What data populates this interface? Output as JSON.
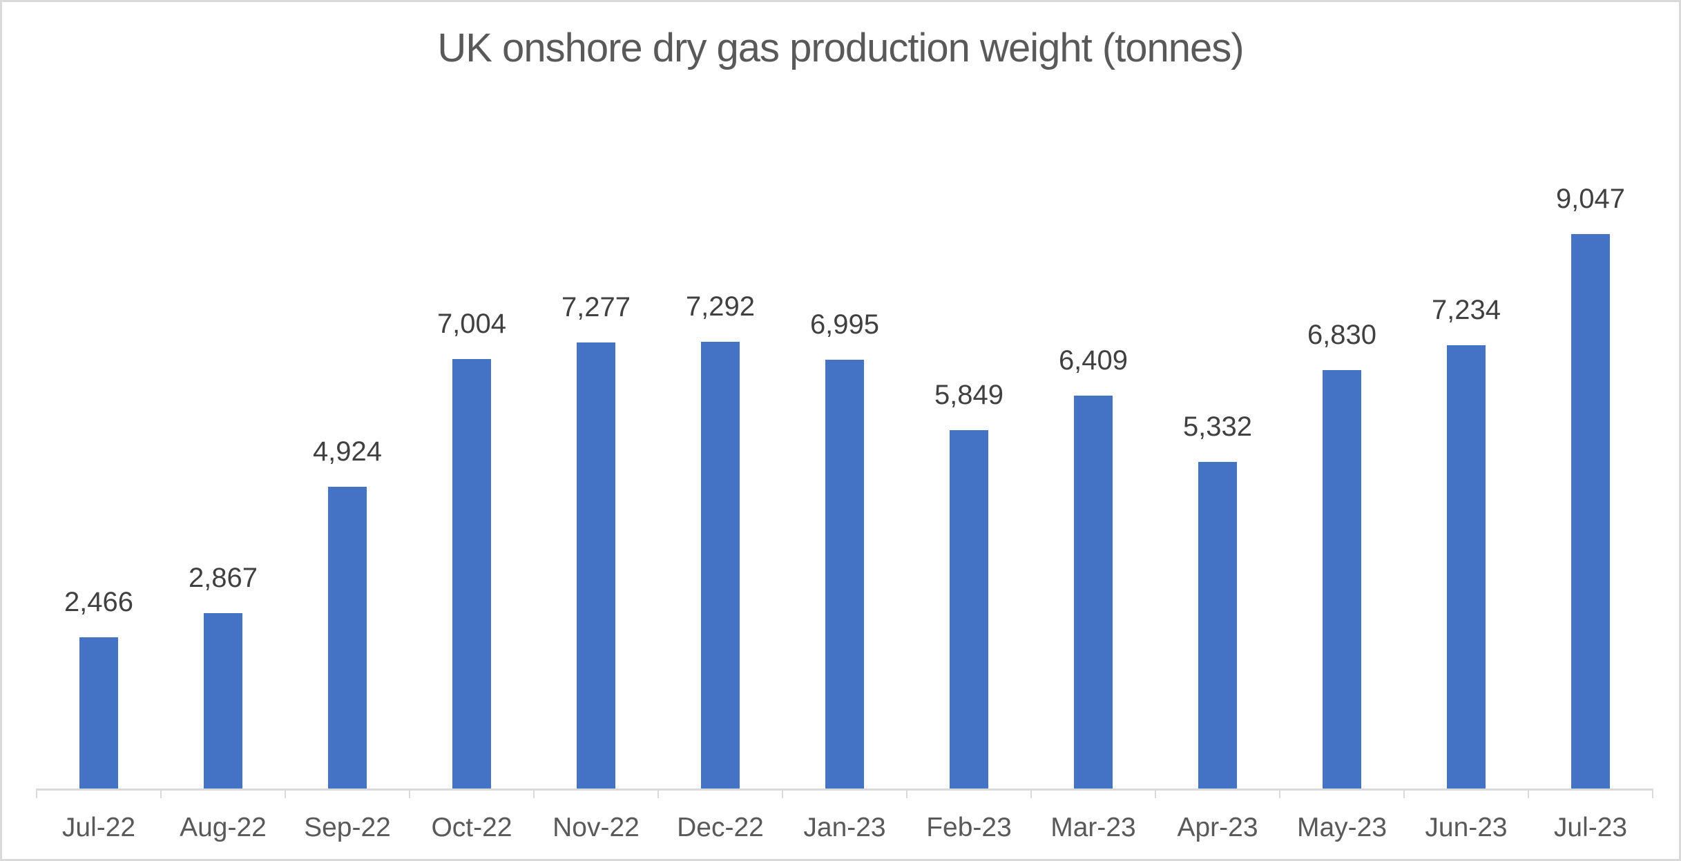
{
  "chart_data": {
    "type": "bar",
    "title": "UK onshore dry gas production weight (tonnes)",
    "categories": [
      "Jul-22",
      "Aug-22",
      "Sep-22",
      "Oct-22",
      "Nov-22",
      "Dec-22",
      "Jan-23",
      "Feb-23",
      "Mar-23",
      "Apr-23",
      "May-23",
      "Jun-23",
      "Jul-23"
    ],
    "values": [
      2466,
      2867,
      4924,
      7004,
      7277,
      7292,
      6995,
      5849,
      6409,
      5332,
      6830,
      7234,
      9047
    ],
    "value_labels": [
      "2,466",
      "2,867",
      "4,924",
      "7,004",
      "7,277",
      "7,292",
      "6,995",
      "5,849",
      "6,409",
      "5,332",
      "6,830",
      "7,234",
      "9,047"
    ],
    "xlabel": "",
    "ylabel": "",
    "baseline": 0,
    "grid": false,
    "legend": false,
    "data_labels_shown": true,
    "colors": {
      "bar": "#4472C4",
      "title_text": "#595959",
      "value_label_text": "#404040",
      "axis_label_text": "#595959",
      "axis_line": "#D9D9D9",
      "frame_border": "#D9D9D9",
      "background": "#FFFFFF"
    }
  }
}
